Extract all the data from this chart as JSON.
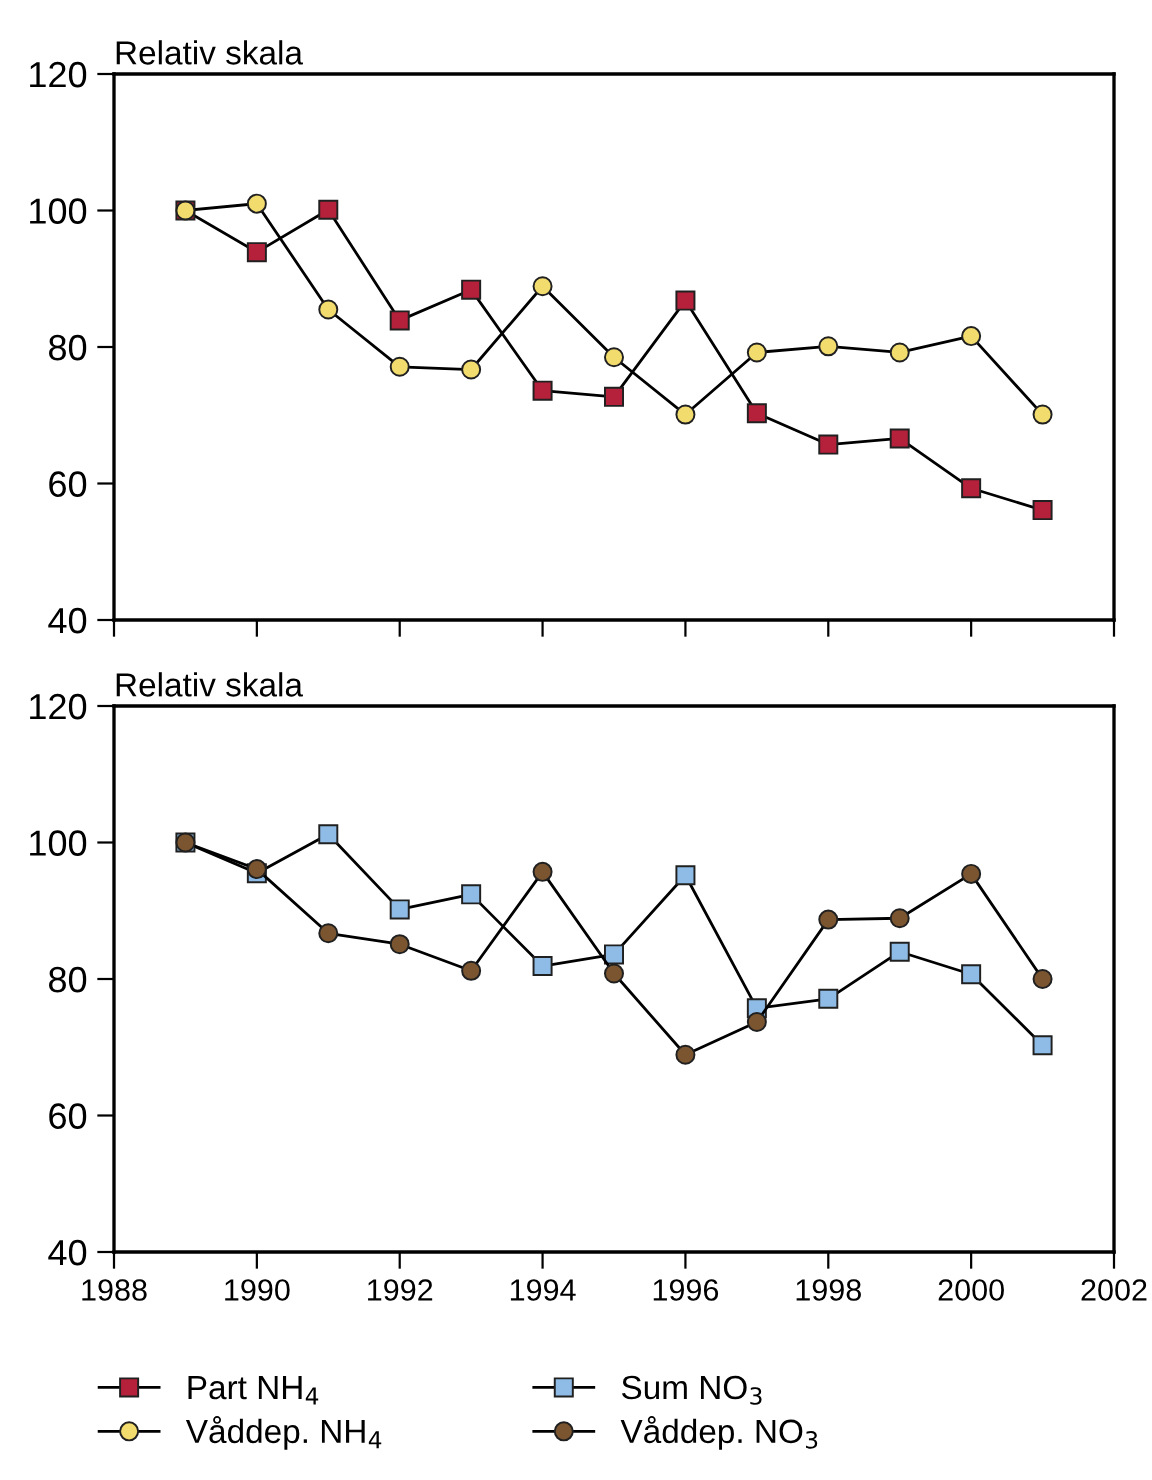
{
  "chart_data": [
    {
      "type": "line",
      "ylabel": "Relativ skala",
      "x": [
        1989,
        1990,
        1991,
        1992,
        1993,
        1994,
        1995,
        1996,
        1997,
        1998,
        1999,
        2000,
        2001
      ],
      "xlim": [
        1988,
        2002
      ],
      "xticks": [
        1988,
        1990,
        1992,
        1994,
        1996,
        1998,
        2000,
        2002
      ],
      "ylim": [
        40,
        120
      ],
      "yticks": [
        40,
        60,
        80,
        100,
        120
      ],
      "tick_labels": "y",
      "legend": "bottom",
      "grid": false,
      "series": [
        {
          "name": "Part NH$_{4}$",
          "color": "#b5213b",
          "marker": "square",
          "values": [
            100,
            93.9,
            100.1,
            83.9,
            88.4,
            73.6,
            72.7,
            86.8,
            70.3,
            65.7,
            66.6,
            59.3,
            56.1
          ]
        },
        {
          "name": "Våddep. NH$_{4}$",
          "color": "#f2dc6e",
          "marker": "circle",
          "values": [
            100,
            101,
            85.5,
            77.1,
            76.7,
            88.9,
            78.5,
            70.1,
            79.2,
            80.1,
            79.2,
            81.6,
            70.1
          ]
        }
      ]
    },
    {
      "type": "line",
      "ylabel": "Relativ skala",
      "x": [
        1989,
        1990,
        1991,
        1992,
        1993,
        1994,
        1995,
        1996,
        1997,
        1998,
        1999,
        2000,
        2001
      ],
      "xlim": [
        1988,
        2002
      ],
      "xticks": [
        1988,
        1990,
        1992,
        1994,
        1996,
        1998,
        2000,
        2002
      ],
      "ylim": [
        40,
        120
      ],
      "yticks": [
        40,
        60,
        80,
        100,
        120
      ],
      "legend": "bottom",
      "grid": false,
      "series": [
        {
          "name": "Sum NO$_{3}$",
          "color": "#8fbce6",
          "marker": "square",
          "values": [
            100,
            95.5,
            101.2,
            90.2,
            92.4,
            81.9,
            83.6,
            95.2,
            75.7,
            77.1,
            84.0,
            80.7,
            70.3
          ]
        },
        {
          "name": "Våddep. NO$_{3}$",
          "color": "#7a5530",
          "marker": "circle",
          "values": [
            100,
            96.1,
            86.7,
            85.1,
            81.2,
            95.7,
            80.8,
            68.9,
            73.7,
            88.7,
            88.9,
            95.4,
            80.0
          ]
        }
      ]
    }
  ]
}
